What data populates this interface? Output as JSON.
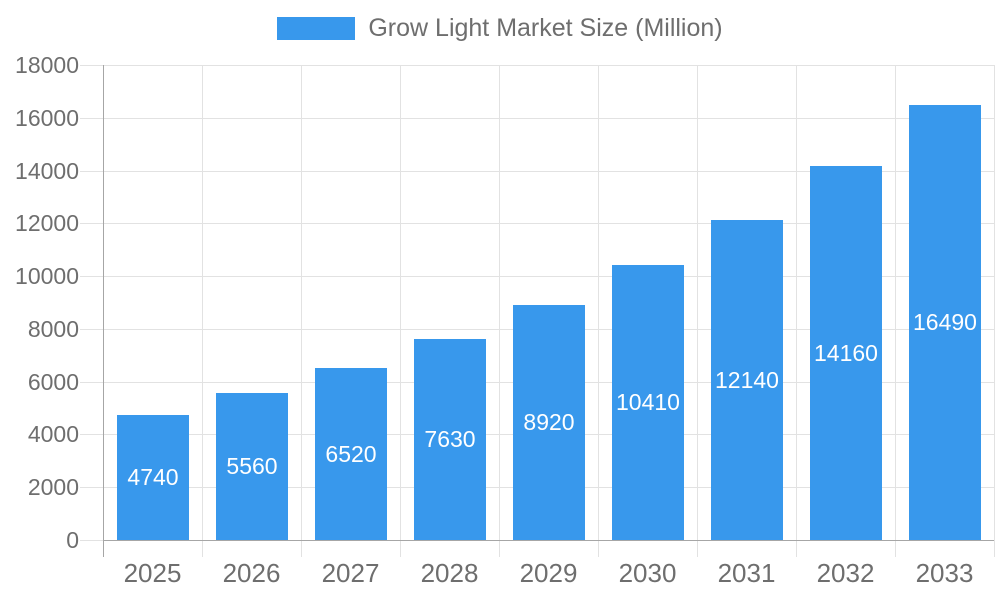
{
  "chart_data": {
    "type": "bar",
    "title": "Grow Light Market Size (Million)",
    "categories": [
      "2025",
      "2026",
      "2027",
      "2028",
      "2029",
      "2030",
      "2031",
      "2032",
      "2033"
    ],
    "values": [
      4740,
      5560,
      6520,
      7630,
      8920,
      10410,
      12140,
      14160,
      16490
    ],
    "series": [
      {
        "name": "Grow Light Market Size (Million)",
        "values": [
          4740,
          5560,
          6520,
          7630,
          8920,
          10410,
          12140,
          14160,
          16490
        ]
      }
    ],
    "xlabel": "",
    "ylabel": "",
    "ylim": [
      0,
      18000
    ],
    "y_tick_step": 2000,
    "y_ticks": [
      0,
      2000,
      4000,
      6000,
      8000,
      10000,
      12000,
      14000,
      16000,
      18000
    ],
    "y_tick_labels": [
      "0",
      "2000",
      "4000",
      "6000",
      "8000",
      "10000",
      "12000",
      "14000",
      "16000",
      "18000"
    ],
    "grid": "on",
    "legend_position": "top-center",
    "bar_labels_inside": true,
    "colors": {
      "bar": "#3898ec",
      "bar_label": "#ffffff",
      "axis_text": "#6e6e6e",
      "gridline": "#e2e2e2",
      "axis_line": "#a6a6a6",
      "background": "#ffffff"
    }
  }
}
